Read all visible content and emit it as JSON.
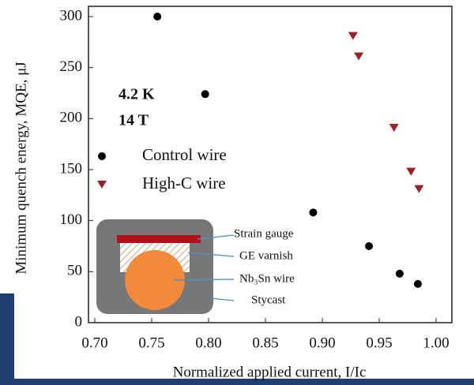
{
  "chart_data": {
    "type": "scatter",
    "x_label": "Normalized applied current, I/Ic",
    "y_label": "Minimum quench energy, MQE, μJ",
    "annotations": [
      "4.2 K",
      "14 T"
    ],
    "series": [
      {
        "name": "Control wire",
        "color": "#000000",
        "marker": "circle",
        "x": [
          0.755,
          0.797,
          0.892,
          0.941,
          0.968,
          0.984
        ],
        "values": [
          300,
          224,
          108,
          75,
          48,
          38
        ]
      },
      {
        "name": "High-C wire",
        "color": "#9b2226",
        "marker": "triangle-down",
        "x": [
          0.927,
          0.932,
          0.963,
          0.978,
          0.985
        ],
        "values": [
          281,
          261,
          191,
          148,
          131
        ]
      }
    ],
    "xlim": [
      0.7,
      1.0
    ],
    "xticks": [
      {
        "value": 0.7,
        "label": "0.70"
      },
      0.75,
      {
        "value": 0.8,
        "label": "0.80"
      },
      0.85,
      {
        "value": 0.9,
        "label": "0.90"
      },
      0.95,
      {
        "value": 1.0,
        "label": "1.00"
      }
    ],
    "ylim": [
      0,
      300
    ],
    "yticks": [
      0,
      50,
      100,
      150,
      200,
      250,
      300
    ],
    "inset_labels": [
      "Strain gauge",
      "GE varnish",
      "Nb₃Sn wire",
      "Stycast"
    ]
  }
}
